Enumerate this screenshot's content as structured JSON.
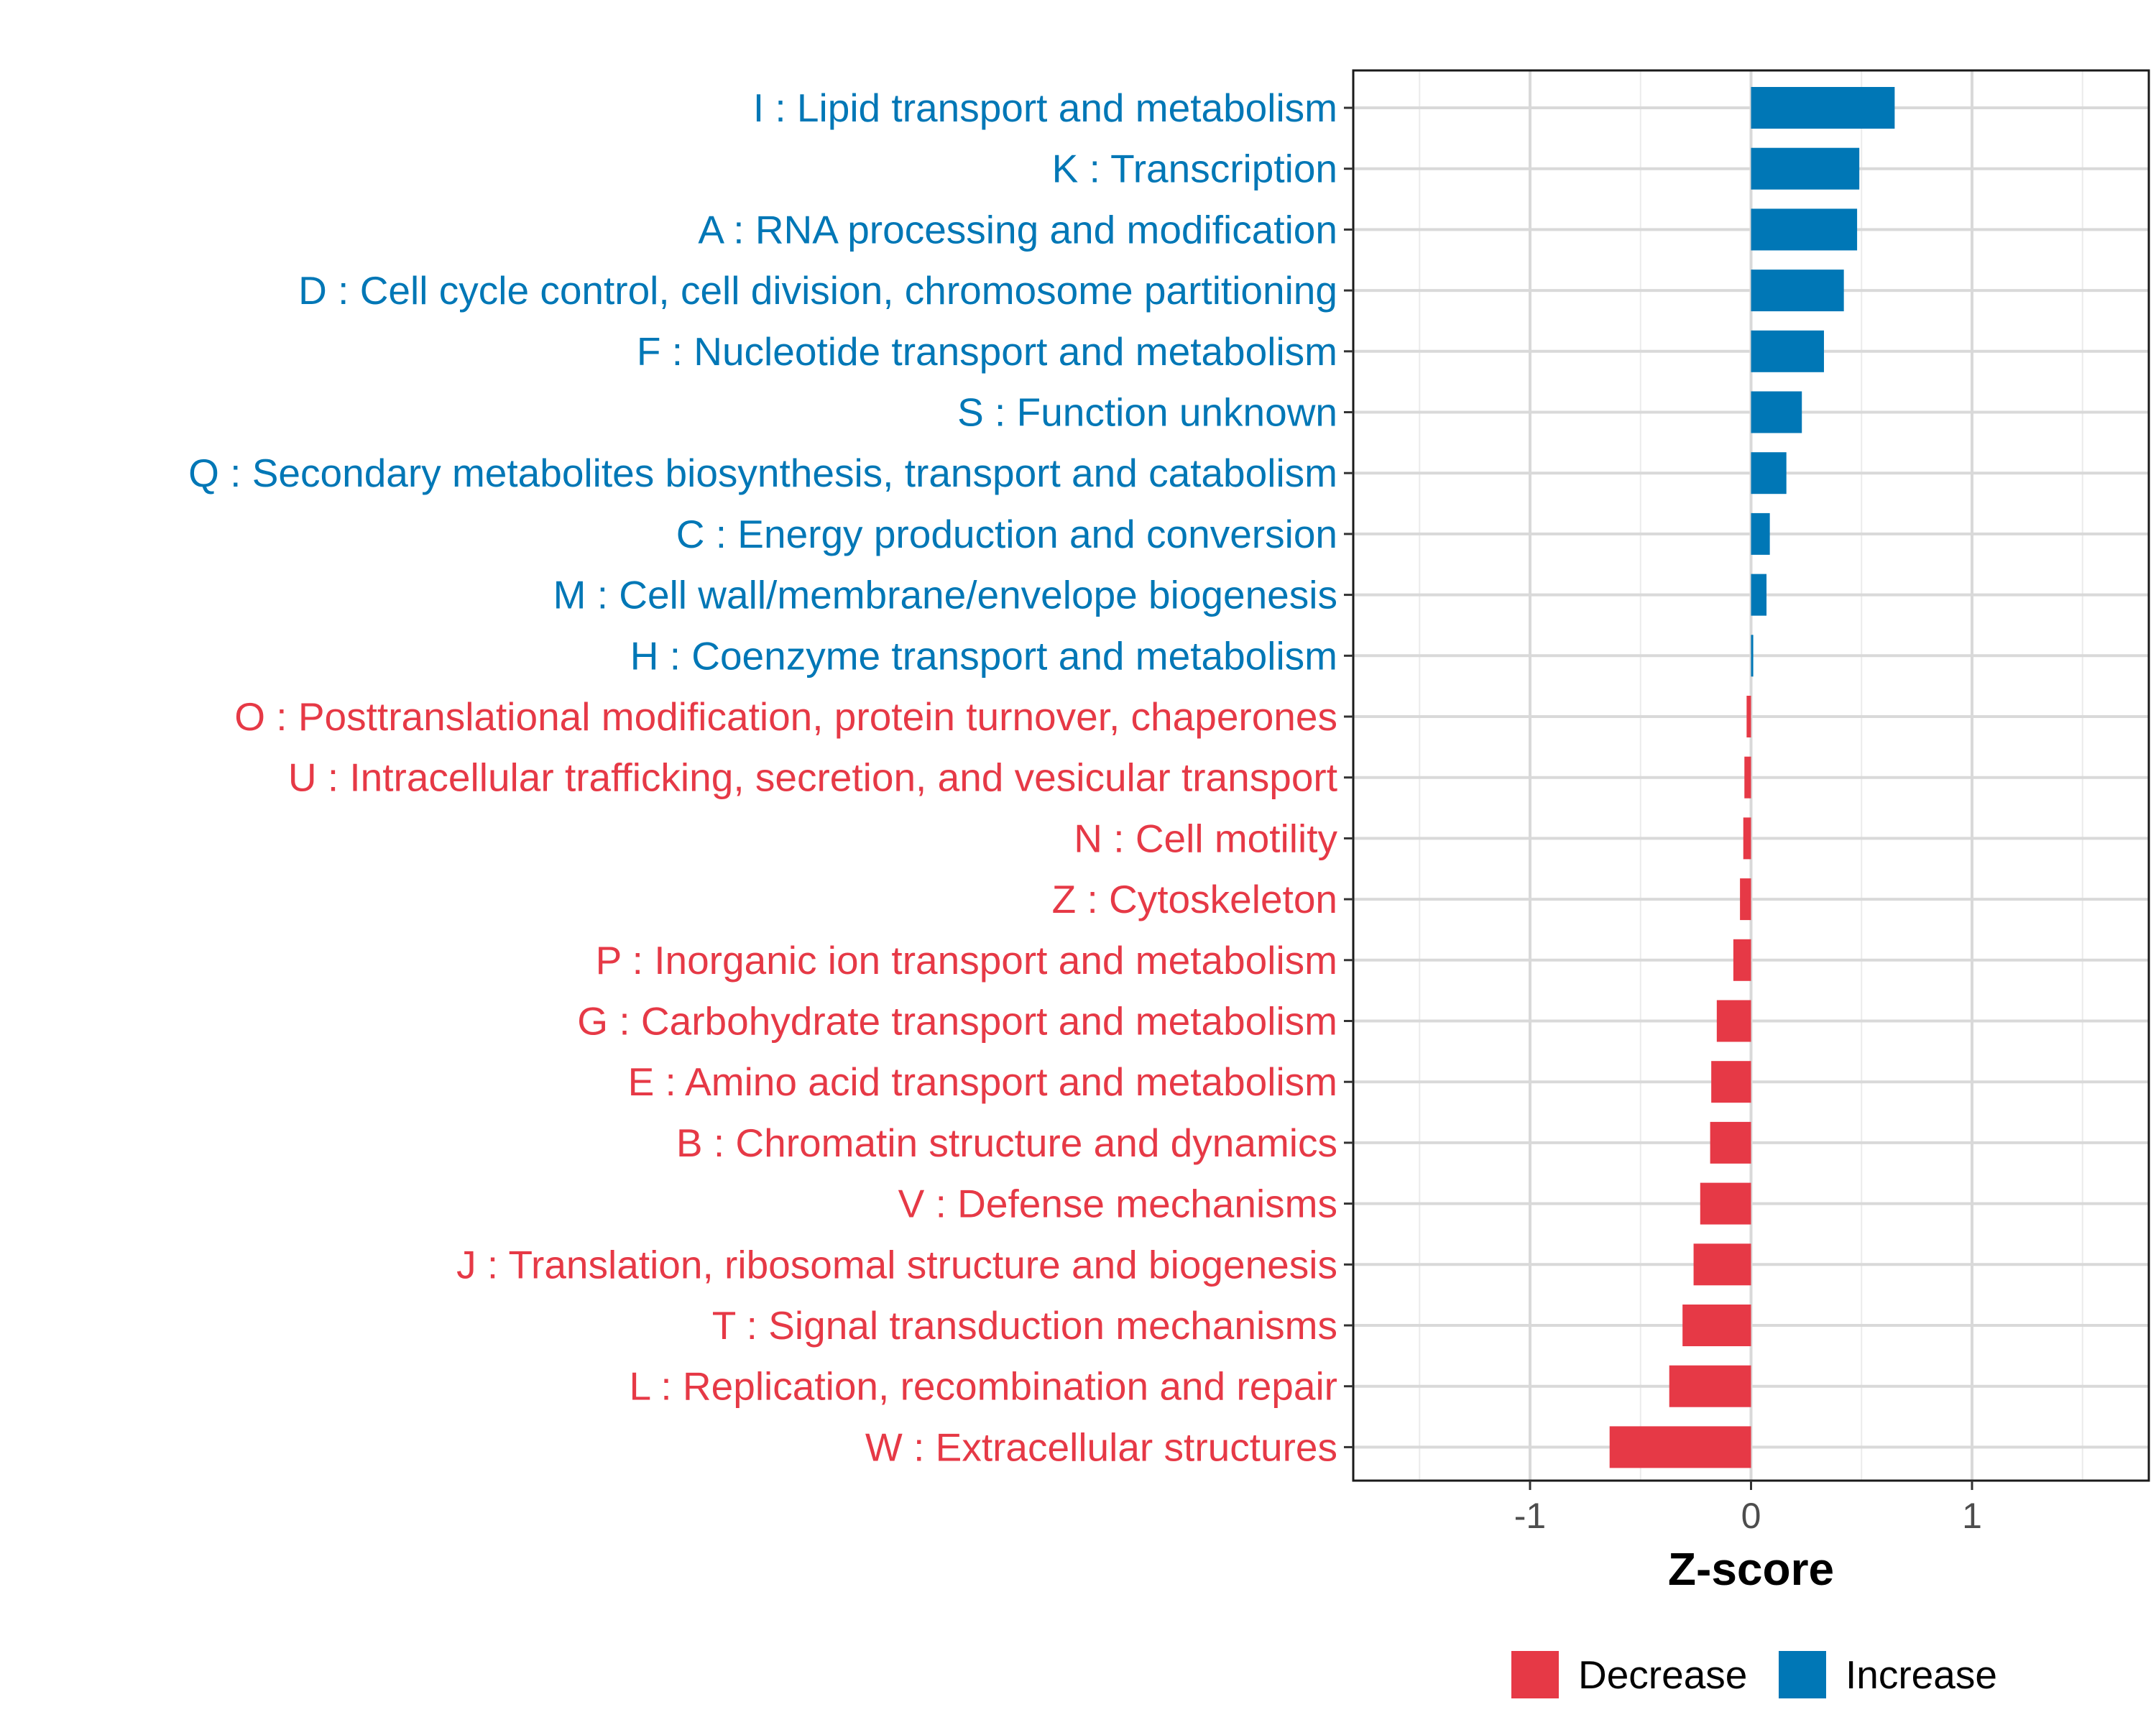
{
  "chart_data": {
    "type": "bar",
    "orientation": "horizontal",
    "title": "",
    "xlabel": "Z-score",
    "ylabel": "",
    "xlim": [
      -1.8,
      1.8
    ],
    "xticks": [
      -1,
      0,
      1
    ],
    "xtick_labels": [
      "-1",
      "0",
      "1"
    ],
    "grid": true,
    "legend_position": "bottom",
    "colors": {
      "Decrease": "#E63946",
      "Increase": "#0077B6"
    },
    "legend": [
      {
        "label": "Decrease",
        "color": "#E63946"
      },
      {
        "label": "Increase",
        "color": "#0077B6"
      }
    ],
    "categories": [
      "I : Lipid transport and metabolism",
      "K : Transcription",
      "A : RNA processing and modification",
      "D : Cell cycle control, cell division, chromosome partitioning",
      "F : Nucleotide transport and metabolism",
      "S : Function unknown",
      "Q : Secondary metabolites biosynthesis, transport and catabolism",
      "C : Energy production and conversion",
      "M : Cell wall/membrane/envelope biogenesis",
      "H : Coenzyme transport and metabolism",
      "O : Posttranslational modification, protein turnover, chaperones",
      "U : Intracellular trafficking, secretion, and vesicular transport",
      "N : Cell motility",
      "Z : Cytoskeleton",
      "P : Inorganic ion transport and metabolism",
      "G : Carbohydrate transport and metabolism",
      "E : Amino acid transport and metabolism",
      "B : Chromatin structure and dynamics",
      "V : Defense mechanisms",
      "J : Translation, ribosomal structure and biogenesis",
      "T : Signal transduction mechanisms",
      "L : Replication, recombination and repair",
      "W : Extracellular structures"
    ],
    "values": [
      0.65,
      0.49,
      0.48,
      0.42,
      0.33,
      0.23,
      0.16,
      0.085,
      0.07,
      0.01,
      -0.02,
      -0.03,
      -0.035,
      -0.05,
      -0.08,
      -0.155,
      -0.18,
      -0.185,
      -0.23,
      -0.26,
      -0.31,
      -0.37,
      -0.64
    ],
    "groups": [
      "Increase",
      "Increase",
      "Increase",
      "Increase",
      "Increase",
      "Increase",
      "Increase",
      "Increase",
      "Increase",
      "Increase",
      "Decrease",
      "Decrease",
      "Decrease",
      "Decrease",
      "Decrease",
      "Decrease",
      "Decrease",
      "Decrease",
      "Decrease",
      "Decrease",
      "Decrease",
      "Decrease",
      "Decrease"
    ]
  }
}
